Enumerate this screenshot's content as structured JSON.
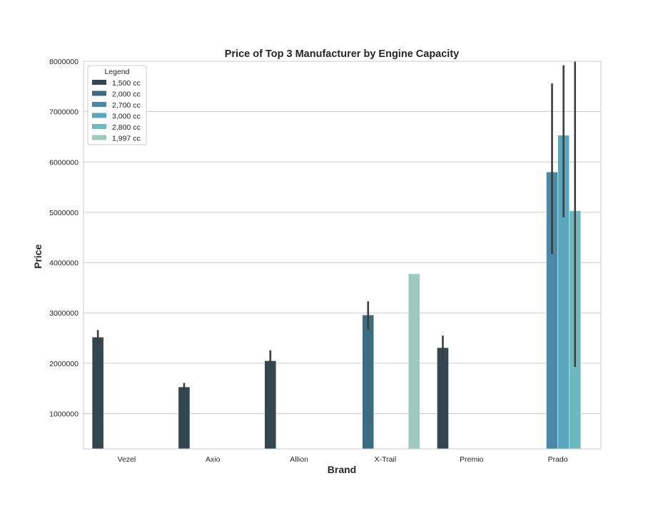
{
  "chart_data": {
    "type": "bar",
    "title": "Price of Top 3 Manufacturer by Engine Capacity",
    "xlabel": "Brand",
    "ylabel": "Price",
    "ylim": [
      300000,
      8000000
    ],
    "yticks": [
      1000000,
      2000000,
      3000000,
      4000000,
      5000000,
      6000000,
      7000000,
      8000000
    ],
    "ytick_labels": [
      "1000000",
      "2000000",
      "3000000",
      "4000000",
      "5000000",
      "6000000",
      "7000000",
      "8000000"
    ],
    "grid": true,
    "legend": {
      "title": "Legend",
      "placement": "top-left"
    },
    "categories": [
      "Vezel",
      "Axio",
      "Allion",
      "X-Trail",
      "Premio",
      "Prado"
    ],
    "series": [
      {
        "name": "1,500 cc",
        "color": "#34464f",
        "values": [
          2520000,
          1530000,
          2050000,
          null,
          2310000,
          null
        ],
        "err_low": [
          2400000,
          1480000,
          1870000,
          null,
          2060000,
          null
        ],
        "err_high": [
          2660000,
          1610000,
          2260000,
          null,
          2550000,
          null
        ]
      },
      {
        "name": "2,000 cc",
        "color": "#3e6b7f",
        "values": [
          null,
          null,
          null,
          2960000,
          null,
          null
        ],
        "err_low": [
          null,
          null,
          null,
          2670000,
          null,
          null
        ],
        "err_high": [
          null,
          null,
          null,
          3230000,
          null,
          null
        ]
      },
      {
        "name": "2,700 cc",
        "color": "#4a8aa6",
        "values": [
          null,
          null,
          null,
          null,
          null,
          5800000
        ],
        "err_low": [
          null,
          null,
          null,
          null,
          null,
          4170000
        ],
        "err_high": [
          null,
          null,
          null,
          null,
          null,
          7560000
        ]
      },
      {
        "name": "3,000 cc",
        "color": "#5aa6bb",
        "values": [
          null,
          null,
          null,
          null,
          null,
          6530000
        ],
        "err_low": [
          null,
          null,
          null,
          null,
          null,
          4900000
        ],
        "err_high": [
          null,
          null,
          null,
          null,
          null,
          7920000
        ]
      },
      {
        "name": "2,800 cc",
        "color": "#6fb8bd",
        "values": [
          null,
          null,
          null,
          null,
          null,
          5030000
        ],
        "err_low": [
          null,
          null,
          null,
          null,
          null,
          1930000
        ],
        "err_high": [
          null,
          null,
          null,
          null,
          null,
          8000000
        ]
      },
      {
        "name": "1,997 cc",
        "color": "#9ccbbd",
        "values": [
          null,
          null,
          null,
          3780000,
          null,
          null
        ],
        "err_low": [
          null,
          null,
          null,
          null,
          null,
          null
        ],
        "err_high": [
          null,
          null,
          null,
          null,
          null,
          null
        ]
      }
    ]
  }
}
